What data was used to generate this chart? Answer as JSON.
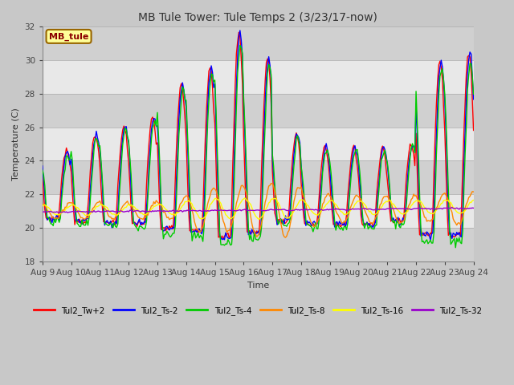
{
  "title": "MB Tule Tower: Tule Temps 2 (3/23/17-now)",
  "xlabel": "Time",
  "ylabel": "Temperature (C)",
  "ylim": [
    18,
    32
  ],
  "xlim": [
    0,
    360
  ],
  "x_tick_labels": [
    "Aug 9",
    "Aug 10",
    "Aug 11",
    "Aug 12",
    "Aug 13",
    "Aug 14",
    "Aug 15",
    "Aug 16",
    "Aug 17",
    "Aug 18",
    "Aug 19",
    "Aug 20",
    "Aug 21",
    "Aug 22",
    "Aug 23",
    "Aug 24"
  ],
  "x_tick_positions": [
    0,
    24,
    48,
    72,
    96,
    120,
    144,
    168,
    192,
    216,
    240,
    264,
    288,
    312,
    336,
    360
  ],
  "y_ticks": [
    18,
    20,
    22,
    24,
    26,
    28,
    30,
    32
  ],
  "bg_color": "#d8d8d8",
  "plot_bg_stripe_dark": "#d0d0d0",
  "plot_bg_stripe_light": "#e8e8e8",
  "legend_label": "MB_tule",
  "series_colors": {
    "Tul2_Tw+2": "#ff0000",
    "Tul2_Ts-2": "#0000ff",
    "Tul2_Ts-4": "#00cc00",
    "Tul2_Ts-8": "#ff8800",
    "Tul2_Ts-16": "#ffff00",
    "Tul2_Ts-32": "#9900cc"
  },
  "legend_box_color": "#ffff99",
  "legend_box_edge": "#996600"
}
